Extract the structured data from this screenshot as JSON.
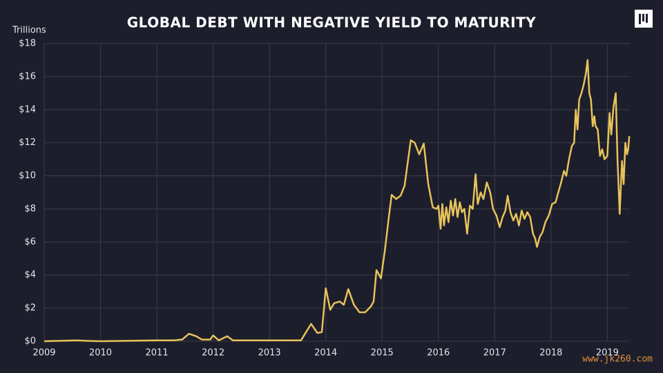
{
  "chart_data": {
    "type": "line",
    "title": "GLOBAL DEBT WITH NEGATIVE YIELD TO MATURITY",
    "y_axis_label": "Trillions",
    "watermark": "www.jk260.com",
    "color": "#e8c35a",
    "grid": true,
    "xlim": [
      2009,
      2019.4
    ],
    "xticks": [
      2009,
      2010,
      2011,
      2012,
      2013,
      2014,
      2015,
      2016,
      2017,
      2018,
      2019
    ],
    "ylim": [
      0,
      18
    ],
    "yticks": [
      {
        "value": 0,
        "label": "$0"
      },
      {
        "value": 2,
        "label": "$2"
      },
      {
        "value": 4,
        "label": "$4"
      },
      {
        "value": 6,
        "label": "$6"
      },
      {
        "value": 8,
        "label": "$8"
      },
      {
        "value": 10,
        "label": "$10"
      },
      {
        "value": 12,
        "label": "$12"
      },
      {
        "value": 14,
        "label": "$14"
      },
      {
        "value": 16,
        "label": "$16"
      },
      {
        "value": 18,
        "label": "$18"
      }
    ],
    "x": [
      2009.0,
      2009.6,
      2009.7,
      2010.0,
      2011.0,
      2011.3,
      2011.45,
      2011.57,
      2011.7,
      2011.8,
      2011.95,
      2012.0,
      2012.1,
      2012.25,
      2012.35,
      2012.8,
      2013.0,
      2013.56,
      2013.74,
      2013.85,
      2013.93,
      2014.0,
      2014.08,
      2014.15,
      2014.25,
      2014.32,
      2014.4,
      2014.5,
      2014.6,
      2014.7,
      2014.8,
      2014.85,
      2014.9,
      2014.98,
      2015.05,
      2015.12,
      2015.17,
      2015.25,
      2015.33,
      2015.4,
      2015.51,
      2015.58,
      2015.66,
      2015.74,
      2015.82,
      2015.9,
      2015.97,
      2016.0,
      2016.04,
      2016.07,
      2016.1,
      2016.14,
      2016.18,
      2016.22,
      2016.26,
      2016.3,
      2016.34,
      2016.38,
      2016.42,
      2016.46,
      2016.51,
      2016.56,
      2016.61,
      2016.66,
      2016.7,
      2016.75,
      2016.8,
      2016.86,
      2016.92,
      2016.97,
      2017.03,
      2017.09,
      2017.14,
      2017.19,
      2017.23,
      2017.28,
      2017.33,
      2017.38,
      2017.43,
      2017.48,
      2017.53,
      2017.58,
      2017.63,
      2017.68,
      2017.72,
      2017.75,
      2017.8,
      2017.85,
      2017.9,
      2017.96,
      2018.02,
      2018.08,
      2018.13,
      2018.18,
      2018.23,
      2018.27,
      2018.32,
      2018.37,
      2018.41,
      2018.44,
      2018.47,
      2018.5,
      2018.54,
      2018.58,
      2018.62,
      2018.65,
      2018.68,
      2018.71,
      2018.74,
      2018.77,
      2018.79,
      2018.83,
      2018.87,
      2018.91,
      2018.95,
      2019.0,
      2019.04,
      2019.07,
      2019.11,
      2019.15,
      2019.18,
      2019.22,
      2019.26,
      2019.29,
      2019.32,
      2019.35,
      2019.37,
      2019.39
    ],
    "values": [
      0,
      0.05,
      0.03,
      0,
      0.05,
      0.05,
      0.1,
      0.45,
      0.3,
      0.1,
      0.1,
      0.35,
      0.05,
      0.3,
      0.05,
      0.05,
      0.05,
      0.05,
      1.05,
      0.5,
      0.55,
      3.2,
      1.9,
      2.3,
      2.4,
      2.2,
      3.15,
      2.2,
      1.75,
      1.75,
      2.1,
      2.4,
      4.3,
      3.8,
      5.5,
      7.5,
      8.85,
      8.6,
      8.8,
      9.4,
      12.15,
      12.0,
      11.3,
      11.95,
      9.5,
      8.1,
      8.0,
      8.2,
      6.8,
      8.3,
      7.0,
      8.1,
      7.2,
      8.5,
      7.6,
      8.6,
      7.5,
      8.4,
      7.8,
      8.0,
      6.5,
      8.2,
      8.0,
      10.1,
      8.3,
      9.0,
      8.6,
      9.6,
      9.0,
      8.0,
      7.6,
      6.9,
      7.5,
      7.9,
      8.8,
      7.8,
      7.3,
      7.7,
      7.0,
      7.9,
      7.4,
      7.8,
      7.5,
      6.5,
      6.2,
      5.7,
      6.3,
      6.6,
      7.2,
      7.6,
      8.3,
      8.4,
      9.0,
      9.6,
      10.3,
      10.0,
      11.0,
      11.8,
      12.0,
      14.0,
      12.8,
      14.6,
      15.0,
      15.5,
      16.2,
      17.0,
      15.0,
      14.6,
      13.0,
      13.6,
      13.0,
      12.8,
      11.2,
      11.6,
      11.0,
      11.2,
      13.8,
      12.5,
      14.2,
      15.0,
      11.0,
      7.7,
      10.9,
      9.5,
      12.0,
      11.3,
      11.6,
      12.4
    ]
  }
}
